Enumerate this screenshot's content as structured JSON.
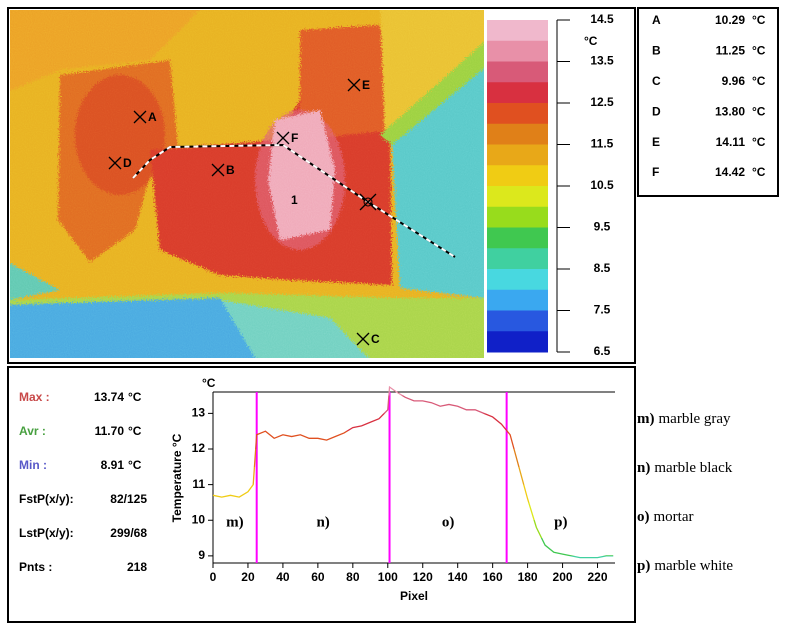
{
  "colorbar": {
    "unit": "°C",
    "lim": [
      6.5,
      14.5
    ],
    "ticks": [
      6.5,
      7.5,
      8.5,
      9.5,
      10.5,
      11.5,
      12.5,
      13.5,
      14.5
    ],
    "colors": [
      "#f0b8cc",
      "#e890a8",
      "#d85a78",
      "#d83040",
      "#e05020",
      "#e08018",
      "#e8a818",
      "#f0cc14",
      "#dce81c",
      "#98dc1c",
      "#40c850",
      "#40d0a0",
      "#48d8e0",
      "#3aa8f0",
      "#2858e0",
      "#1020c8"
    ]
  },
  "image_label": "1",
  "points": [
    {
      "name": "A",
      "value": "10.29",
      "unit": "°C"
    },
    {
      "name": "B",
      "value": "11.25",
      "unit": "°C"
    },
    {
      "name": "C",
      "value": "9.96",
      "unit": "°C"
    },
    {
      "name": "D",
      "value": "13.80",
      "unit": "°C"
    },
    {
      "name": "E",
      "value": "14.11",
      "unit": "°C"
    },
    {
      "name": "F",
      "value": "14.42",
      "unit": "°C"
    }
  ],
  "stats": [
    {
      "label": "Max :",
      "value": "13.74",
      "unit": "°C",
      "color": "#c84848"
    },
    {
      "label": "Avr :",
      "value": "11.70",
      "unit": "°C",
      "color": "#48a040"
    },
    {
      "label": "Min :",
      "value": "8.91",
      "unit": "°C",
      "color": "#5858c8"
    },
    {
      "label": "FstP(x/y):",
      "value": "82/125",
      "color": "#000000"
    },
    {
      "label": "LstP(x/y):",
      "value": "299/68",
      "color": "#000000"
    },
    {
      "label": "Pnts :",
      "value": "218",
      "color": "#000000"
    }
  ],
  "legend": [
    {
      "key": "m)",
      "label": "marble gray"
    },
    {
      "key": "n)",
      "label": "marble black"
    },
    {
      "key": "o)",
      "label": "mortar"
    },
    {
      "key": "p)",
      "label": "marble white"
    }
  ],
  "chart_data": {
    "type": "line",
    "x_label": "Pixel",
    "y_label": "Temperature °C",
    "y_unit": "°C",
    "xlim": [
      0,
      230
    ],
    "ylim": [
      8.8,
      13.6
    ],
    "xticks": [
      0,
      20,
      40,
      60,
      80,
      100,
      120,
      140,
      160,
      180,
      200,
      220
    ],
    "yticks": [
      9,
      10,
      11,
      12,
      13
    ],
    "x": [
      0,
      5,
      10,
      15,
      20,
      23,
      25,
      30,
      35,
      40,
      45,
      50,
      55,
      60,
      65,
      70,
      75,
      80,
      85,
      90,
      95,
      100,
      101,
      105,
      110,
      115,
      120,
      125,
      130,
      135,
      140,
      145,
      150,
      155,
      160,
      165,
      170,
      175,
      180,
      185,
      190,
      195,
      200,
      205,
      210,
      215,
      220,
      225,
      229
    ],
    "values": [
      10.7,
      10.65,
      10.7,
      10.65,
      10.8,
      11.0,
      12.4,
      12.5,
      12.3,
      12.4,
      12.35,
      12.4,
      12.3,
      12.3,
      12.25,
      12.35,
      12.45,
      12.6,
      12.65,
      12.75,
      12.85,
      13.1,
      13.74,
      13.6,
      13.45,
      13.35,
      13.35,
      13.3,
      13.2,
      13.25,
      13.2,
      13.1,
      13.1,
      13.0,
      12.9,
      12.7,
      12.4,
      11.5,
      10.6,
      9.8,
      9.3,
      9.1,
      9.05,
      9.0,
      8.95,
      8.95,
      8.95,
      9.0,
      9.0
    ],
    "dividers": [
      25,
      101,
      168
    ],
    "divider_color": "#ff00ff",
    "segment_labels": [
      "m)",
      "n)",
      "o)",
      "p)"
    ]
  }
}
